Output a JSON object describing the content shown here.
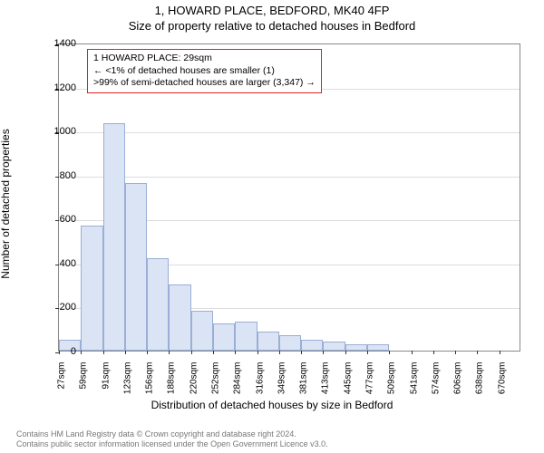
{
  "title_line1": "1, HOWARD PLACE, BEDFORD, MK40 4FP",
  "title_line2": "Size of property relative to detached houses in Bedford",
  "ylabel": "Number of detached properties",
  "xlabel": "Distribution of detached houses by size in Bedford",
  "annotation": {
    "line1": "1 HOWARD PLACE: 29sqm",
    "line2": "← <1% of detached houses are smaller (1)",
    "line3": ">99% of semi-detached houses are larger (3,347) →",
    "border_color": "#d22"
  },
  "footer": {
    "line1": "Contains HM Land Registry data © Crown copyright and database right 2024.",
    "line2": "Contains public sector information licensed under the Open Government Licence v3.0."
  },
  "chart": {
    "type": "histogram",
    "background_color": "#ffffff",
    "grid_color": "#dddddd",
    "axis_color": "#888888",
    "bar_fill": "#dbe4f5",
    "bar_border": "#9aaed6",
    "ylim": [
      0,
      1400
    ],
    "ytick_step": 200,
    "yticks": [
      0,
      200,
      400,
      600,
      800,
      1000,
      1200,
      1400
    ],
    "xtick_labels": [
      "27sqm",
      "59sqm",
      "91sqm",
      "123sqm",
      "156sqm",
      "188sqm",
      "220sqm",
      "252sqm",
      "284sqm",
      "316sqm",
      "349sqm",
      "381sqm",
      "413sqm",
      "445sqm",
      "477sqm",
      "509sqm",
      "541sqm",
      "574sqm",
      "606sqm",
      "638sqm",
      "670sqm"
    ],
    "values": [
      50,
      570,
      1035,
      760,
      420,
      300,
      180,
      125,
      130,
      85,
      70,
      50,
      40,
      30,
      30,
      0,
      0,
      0,
      0,
      0,
      0
    ],
    "n_bins": 21,
    "label_fontsize": 12,
    "tick_fontsize": 11,
    "title_fontsize": 13
  }
}
